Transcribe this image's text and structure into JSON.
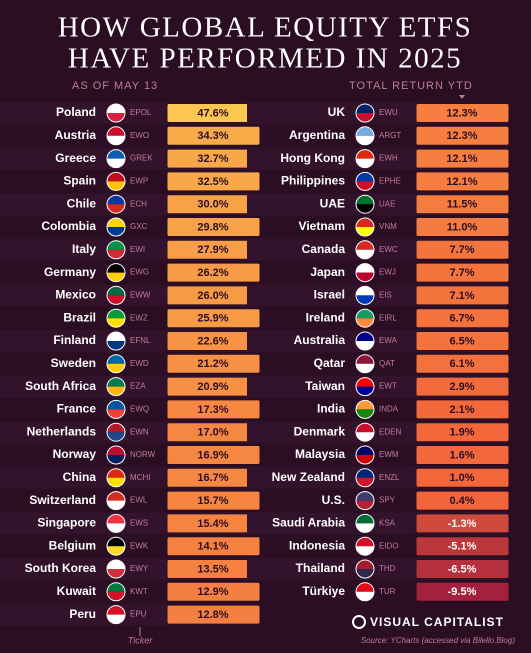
{
  "header": {
    "title_line1": "HOW GLOBAL EQUITY ETFS",
    "title_line2": "HAVE PERFORMED IN 2025",
    "as_of": "AS OF MAY 13",
    "total_return": "TOTAL RETURN YTD"
  },
  "rows_left": [
    {
      "country": "Poland",
      "ticker": "EPOL",
      "return": "47.6%"
    },
    {
      "country": "Austria",
      "ticker": "EWO",
      "return": "34.3%"
    },
    {
      "country": "Greece",
      "ticker": "GREK",
      "return": "32.7%"
    },
    {
      "country": "Spain",
      "ticker": "EWP",
      "return": "32.5%"
    },
    {
      "country": "Chile",
      "ticker": "ECH",
      "return": "30.0%"
    },
    {
      "country": "Colombia",
      "ticker": "GXC",
      "return": "29.8%"
    },
    {
      "country": "Italy",
      "ticker": "EWI",
      "return": "27.9%"
    },
    {
      "country": "Germany",
      "ticker": "EWG",
      "return": "26.2%"
    },
    {
      "country": "Mexico",
      "ticker": "EWW",
      "return": "26.0%"
    },
    {
      "country": "Brazil",
      "ticker": "EWZ",
      "return": "25.9%"
    },
    {
      "country": "Finland",
      "ticker": "EFNL",
      "return": "22.6%"
    },
    {
      "country": "Sweden",
      "ticker": "EWD",
      "return": "21.2%"
    },
    {
      "country": "South Africa",
      "ticker": "EZA",
      "return": "20.9%"
    },
    {
      "country": "France",
      "ticker": "EWQ",
      "return": "17.3%"
    },
    {
      "country": "Netherlands",
      "ticker": "EWN",
      "return": "17.0%"
    },
    {
      "country": "Norway",
      "ticker": "NORW",
      "return": "16.9%"
    },
    {
      "country": "China",
      "ticker": "MCHI",
      "return": "16.7%"
    },
    {
      "country": "Switzerland",
      "ticker": "EWL",
      "return": "15.7%"
    },
    {
      "country": "Singapore",
      "ticker": "EWS",
      "return": "15.4%"
    },
    {
      "country": "Belgium",
      "ticker": "EWK",
      "return": "14.1%"
    },
    {
      "country": "South Korea",
      "ticker": "EWY",
      "return": "13.5%"
    },
    {
      "country": "Kuwait",
      "ticker": "KWT",
      "return": "12.9%"
    },
    {
      "country": "Peru",
      "ticker": "EPU",
      "return": "12.8%"
    }
  ],
  "rows_right": [
    {
      "country": "UK",
      "ticker": "EWU",
      "return": "12.3%"
    },
    {
      "country": "Argentina",
      "ticker": "ARGT",
      "return": "12.3%"
    },
    {
      "country": "Hong Kong",
      "ticker": "EWH",
      "return": "12.1%"
    },
    {
      "country": "Philippines",
      "ticker": "EPHE",
      "return": "12.1%"
    },
    {
      "country": "UAE",
      "ticker": "UAE",
      "return": "11.5%"
    },
    {
      "country": "Vietnam",
      "ticker": "VNM",
      "return": "11.0%"
    },
    {
      "country": "Canada",
      "ticker": "EWC",
      "return": "7.7%"
    },
    {
      "country": "Japan",
      "ticker": "EWJ",
      "return": "7.7%"
    },
    {
      "country": "Israel",
      "ticker": "EIS",
      "return": "7.1%"
    },
    {
      "country": "Ireland",
      "ticker": "EIRL",
      "return": "6.7%"
    },
    {
      "country": "Australia",
      "ticker": "EWA",
      "return": "6.5%"
    },
    {
      "country": "Qatar",
      "ticker": "QAT",
      "return": "6.1%"
    },
    {
      "country": "Taiwan",
      "ticker": "EWT",
      "return": "2.9%"
    },
    {
      "country": "India",
      "ticker": "INDA",
      "return": "2.1%"
    },
    {
      "country": "Denmark",
      "ticker": "EDEN",
      "return": "1.9%"
    },
    {
      "country": "Malaysia",
      "ticker": "EWM",
      "return": "1.6%"
    },
    {
      "country": "New Zealand",
      "ticker": "ENZL",
      "return": "1.0%"
    },
    {
      "country": "U.S.",
      "ticker": "SPY",
      "return": "0.4%"
    },
    {
      "country": "Saudi Arabia",
      "ticker": "KSA",
      "return": "-1.3%"
    },
    {
      "country": "Indonesia",
      "ticker": "EIDO",
      "return": "-5.1%"
    },
    {
      "country": "Thailand",
      "ticker": "THD",
      "return": "-6.5%"
    },
    {
      "country": "Türkiye",
      "ticker": "TUR",
      "return": "-9.5%"
    }
  ],
  "footer": {
    "ticker_label": "Ticker",
    "brand": "VISUAL CAPITALIST",
    "source": "Source: YCharts (accessed via Bilello.Blog)"
  }
}
